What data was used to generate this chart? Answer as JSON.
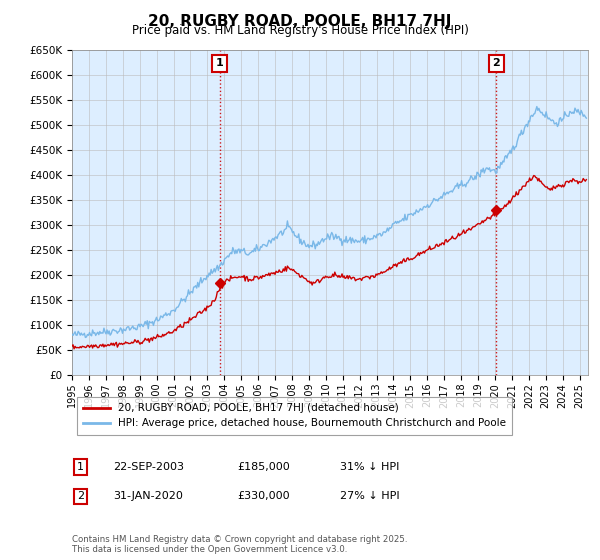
{
  "title": "20, RUGBY ROAD, POOLE, BH17 7HJ",
  "subtitle": "Price paid vs. HM Land Registry's House Price Index (HPI)",
  "ylim": [
    0,
    650000
  ],
  "xlim_start": 1995.0,
  "xlim_end": 2025.5,
  "sale1_date": 2003.73,
  "sale1_price": 185000,
  "sale1_label": "1",
  "sale1_date_str": "22-SEP-2003",
  "sale1_price_str": "£185,000",
  "sale1_pct_str": "31% ↓ HPI",
  "sale2_date": 2020.08,
  "sale2_price": 330000,
  "sale2_label": "2",
  "sale2_date_str": "31-JAN-2020",
  "sale2_price_str": "£330,000",
  "sale2_pct_str": "27% ↓ HPI",
  "legend_line1": "20, RUGBY ROAD, POOLE, BH17 7HJ (detached house)",
  "legend_line2": "HPI: Average price, detached house, Bournemouth Christchurch and Poole",
  "footer": "Contains HM Land Registry data © Crown copyright and database right 2025.\nThis data is licensed under the Open Government Licence v3.0.",
  "hpi_color": "#7ab8e8",
  "hpi_fill_color": "#d0e8f8",
  "price_color": "#cc0000",
  "vline_color": "#cc0000",
  "background_color": "#ffffff",
  "plot_bg_color": "#ddeeff",
  "grid_color": "#bbbbbb",
  "annotation_box_color": "#cc0000"
}
